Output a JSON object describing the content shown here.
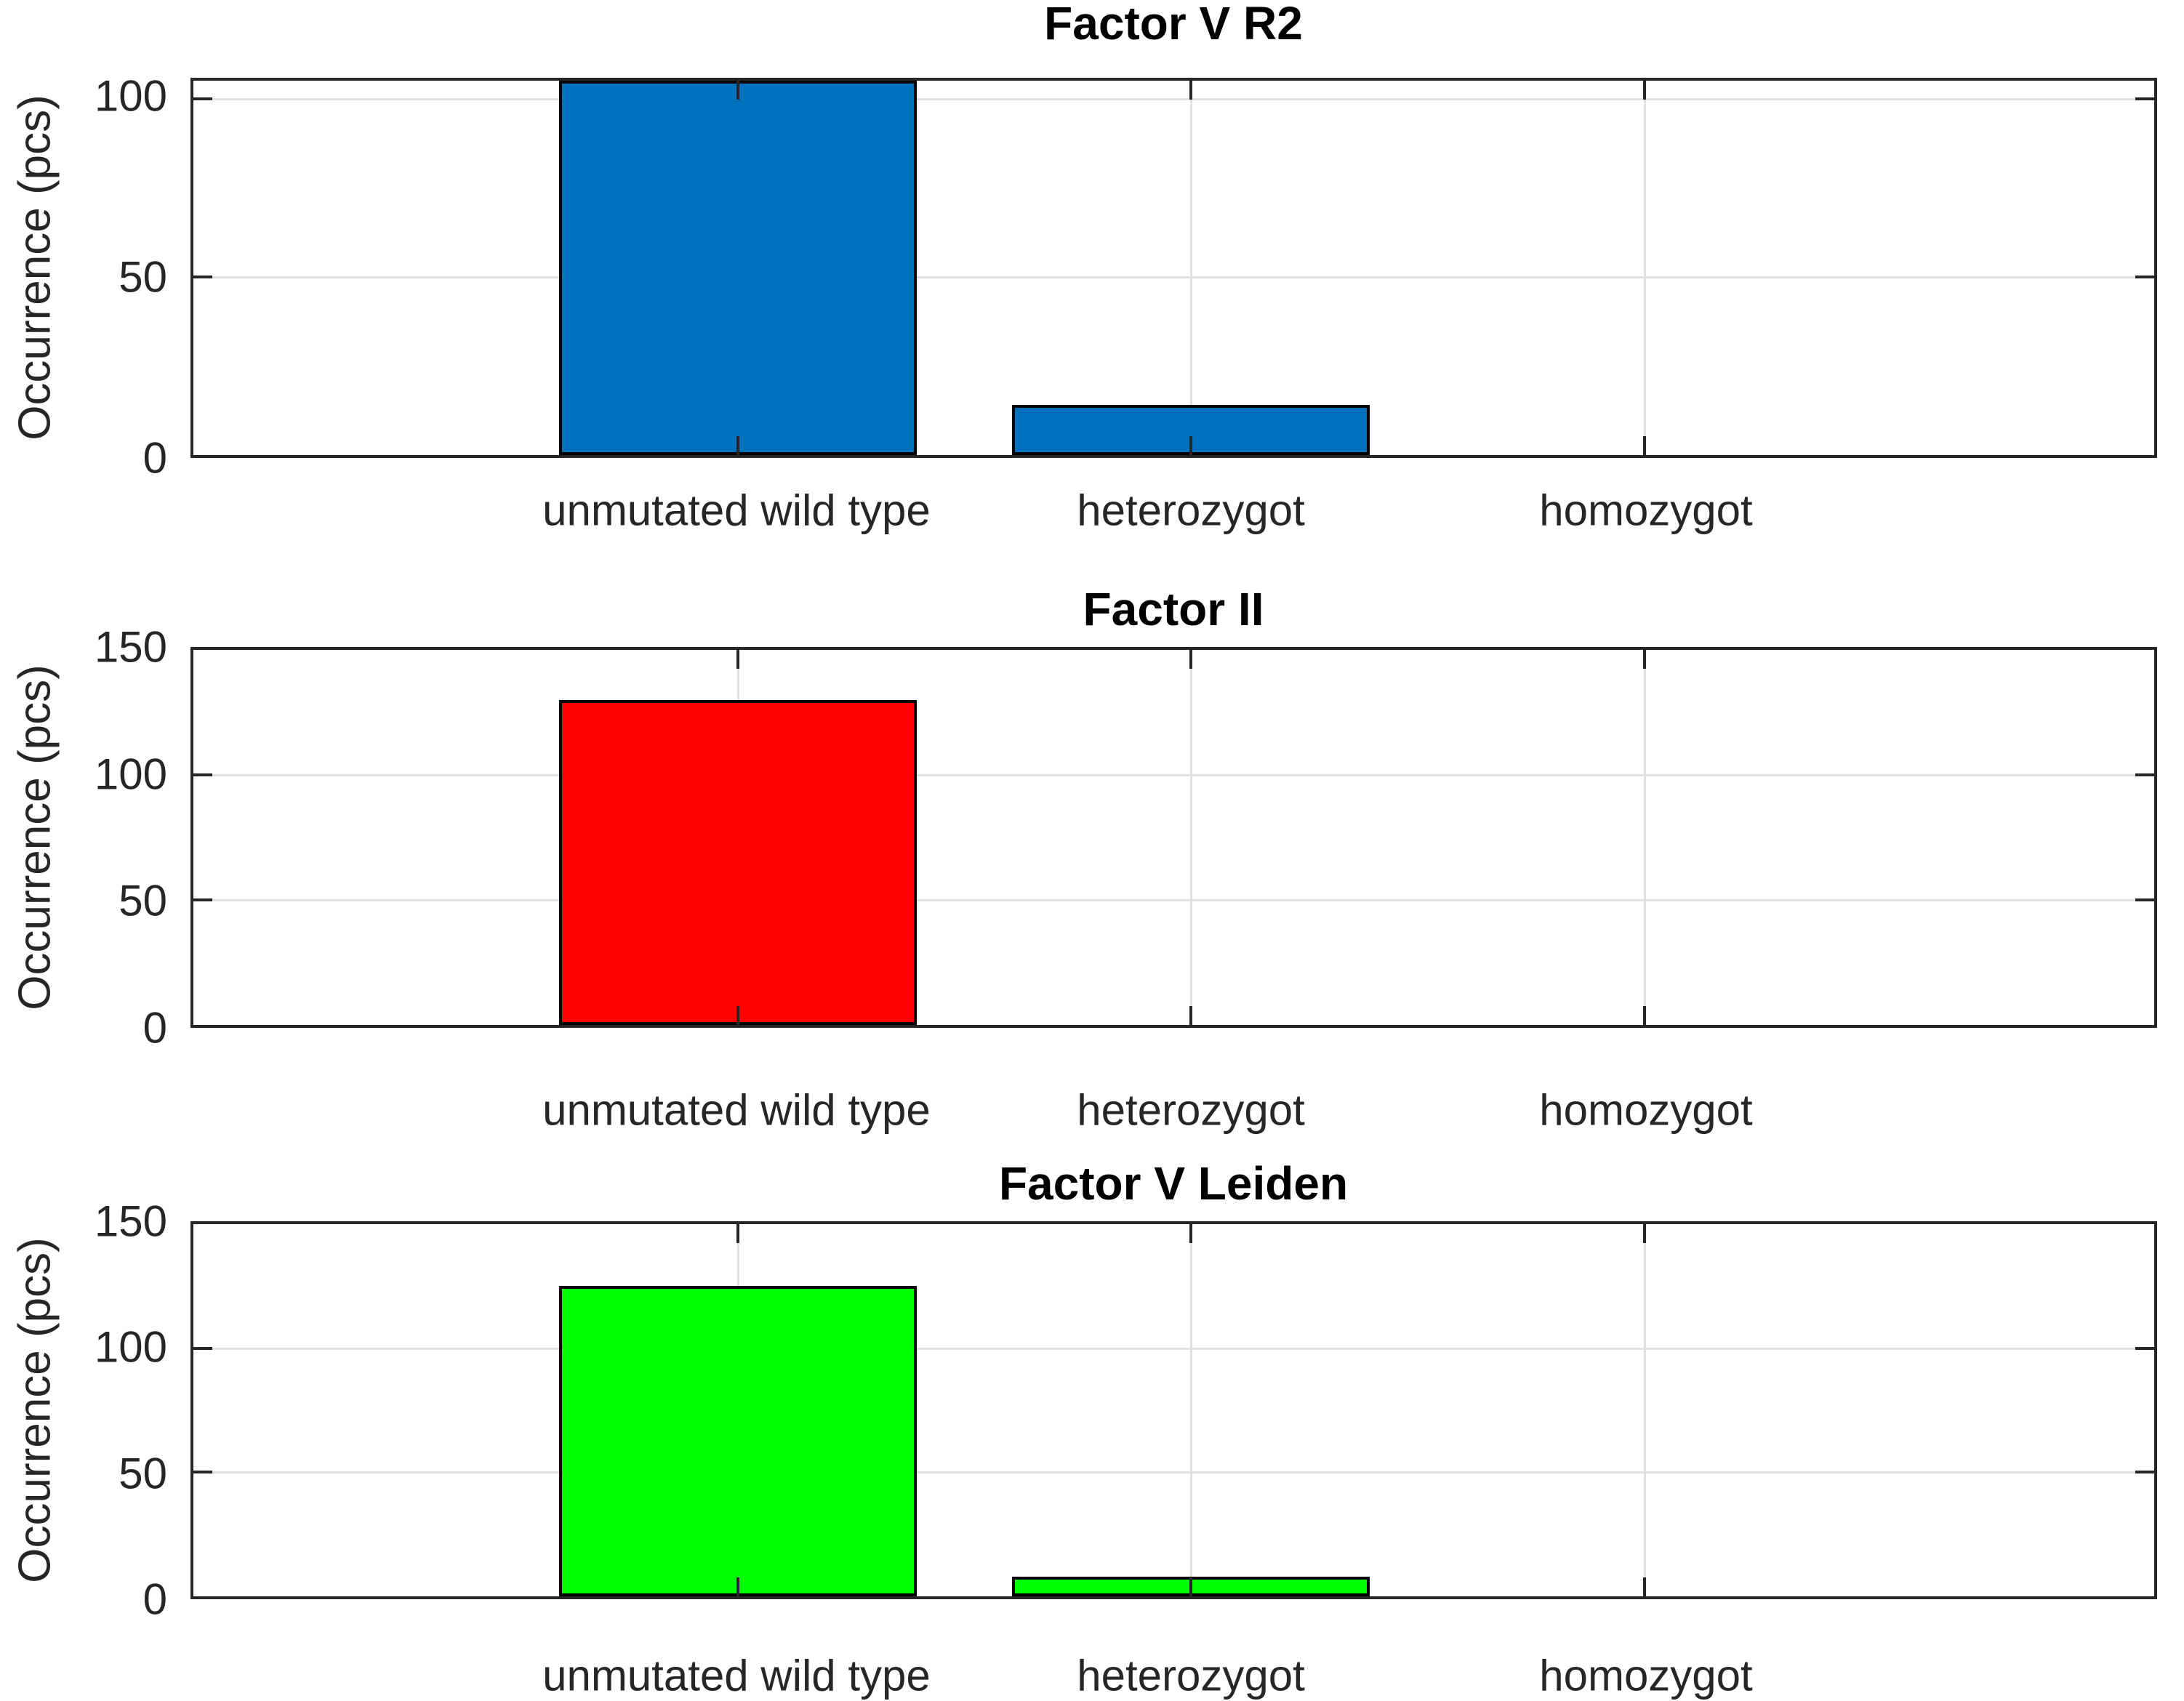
{
  "figure": {
    "background": "#ffffff",
    "description": "Three vertically stacked bar charts of mutation occurrence"
  },
  "style": {
    "axes_color": "#262626",
    "grid_color": "#e0e0e0",
    "text_color": "#262626",
    "title_color": "#000000",
    "bg_color": "#ffffff"
  },
  "chart_data": [
    {
      "type": "bar",
      "title": "Factor V R2",
      "ylabel": "Occurrence (pcs)",
      "xlabel": "",
      "categories": [
        "unmutated wild type",
        "heterozygot",
        "homozygot"
      ],
      "values": [
        105,
        14,
        0
      ],
      "bar_color": "#0072BD",
      "bar_edge_color": "#000000",
      "ylim": [
        0,
        105
      ],
      "yticks": [
        0,
        50,
        100
      ],
      "grid": true,
      "legend": "none",
      "note": "unmutated wild type bar is clipped at the top of the axis (true value exceeds 105); heterozygot is approximately 14; homozygot is 0"
    },
    {
      "type": "bar",
      "title": "Factor II",
      "ylabel": "Occurrence (pcs)",
      "xlabel": "",
      "categories": [
        "unmutated wild type",
        "heterozygot",
        "homozygot"
      ],
      "values": [
        130,
        0,
        0
      ],
      "bar_color": "#FF0000",
      "bar_edge_color": "#000000",
      "ylim": [
        0,
        150
      ],
      "yticks": [
        0,
        50,
        100,
        150
      ],
      "grid": true,
      "legend": "none",
      "note": "only unmutated wild type has occurrences (approximately 130)"
    },
    {
      "type": "bar",
      "title": "Factor V Leiden",
      "ylabel": "Occurrence (pcs)",
      "xlabel": "",
      "categories": [
        "unmutated wild type",
        "heterozygot",
        "homozygot"
      ],
      "values": [
        125,
        8,
        0
      ],
      "bar_color": "#00FF00",
      "bar_edge_color": "#000000",
      "ylim": [
        0,
        150
      ],
      "yticks": [
        0,
        50,
        100,
        150
      ],
      "grid": true,
      "legend": "none",
      "note": "unmutated wild type approximately 125, heterozygot approximately 8, homozygot 0"
    }
  ]
}
